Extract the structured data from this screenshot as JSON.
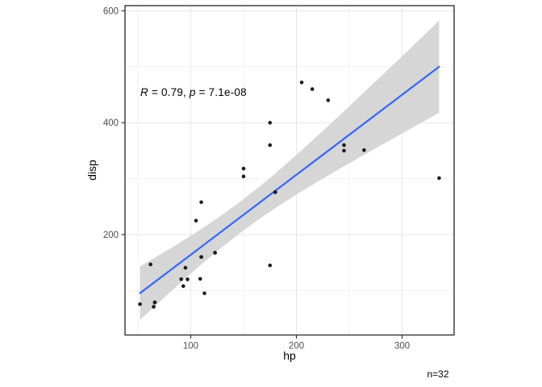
{
  "chart_data": {
    "type": "scatter",
    "title": "",
    "xlabel": "hp",
    "ylabel": "disp",
    "caption": "n=32",
    "annotation": {
      "r_label": "R",
      "r_text": " = 0.79, ",
      "p_label": "p",
      "p_text": " = 7.1e-08"
    },
    "x_domain": [
      37.85,
      349.15
    ],
    "y_domain": [
      20.6,
      609.2
    ],
    "x_ticks": [
      100,
      200,
      300
    ],
    "y_ticks": [
      200,
      400,
      600
    ],
    "x_minor_gridlines": [
      50,
      150,
      250
    ],
    "y_minor_gridlines": [
      100,
      300,
      500
    ],
    "grid": true,
    "legend": "none",
    "points": [
      [
        110,
        160
      ],
      [
        110,
        160
      ],
      [
        93,
        108
      ],
      [
        110,
        258
      ],
      [
        175,
        360
      ],
      [
        105,
        225
      ],
      [
        245,
        360
      ],
      [
        62,
        146.7
      ],
      [
        95,
        140.8
      ],
      [
        123,
        167.6
      ],
      [
        123,
        167.6
      ],
      [
        180,
        275.8
      ],
      [
        180,
        275.8
      ],
      [
        180,
        275.8
      ],
      [
        205,
        472
      ],
      [
        215,
        460
      ],
      [
        230,
        440
      ],
      [
        66,
        78.7
      ],
      [
        52,
        75.7
      ],
      [
        65,
        71.1
      ],
      [
        97,
        120.1
      ],
      [
        150,
        318
      ],
      [
        150,
        304
      ],
      [
        245,
        350
      ],
      [
        175,
        400
      ],
      [
        66,
        79
      ],
      [
        91,
        120.3
      ],
      [
        113,
        95.1
      ],
      [
        264,
        351
      ],
      [
        175,
        145
      ],
      [
        335,
        301
      ],
      [
        109,
        121
      ]
    ],
    "regression_line": {
      "x": [
        52,
        335
      ],
      "y": [
        95.3,
        500.0
      ],
      "color": "#3366FF"
    },
    "confidence_band": {
      "x": [
        52,
        65,
        80,
        95,
        110,
        128,
        146.7,
        163,
        180,
        200,
        220,
        240,
        260,
        280,
        300,
        317,
        335
      ],
      "lower": [
        47.4,
        70.2,
        96.3,
        121.8,
        146.6,
        175.1,
        202.9,
        225.5,
        247.4,
        271.6,
        294.5,
        316.7,
        338.4,
        359.8,
        380.9,
        398.8,
        417.6
      ],
      "upper": [
        143.2,
        157.6,
        174.5,
        191.8,
        210.0,
        232.9,
        258.5,
        282.7,
        309.4,
        342.4,
        376.7,
        411.7,
        447.2,
        483.0,
        519.0,
        549.8,
        582.5
      ],
      "color": "#D6D6D6"
    },
    "colors": {
      "point": "#1B1B1B",
      "grid_major": "#E6E6E6",
      "grid_minor": "#F1F1F1",
      "panel_border": "#333333",
      "tick_mark": "#333333",
      "tick_label": "#4D4D4D",
      "panel_background": "#FFFFFF"
    }
  }
}
